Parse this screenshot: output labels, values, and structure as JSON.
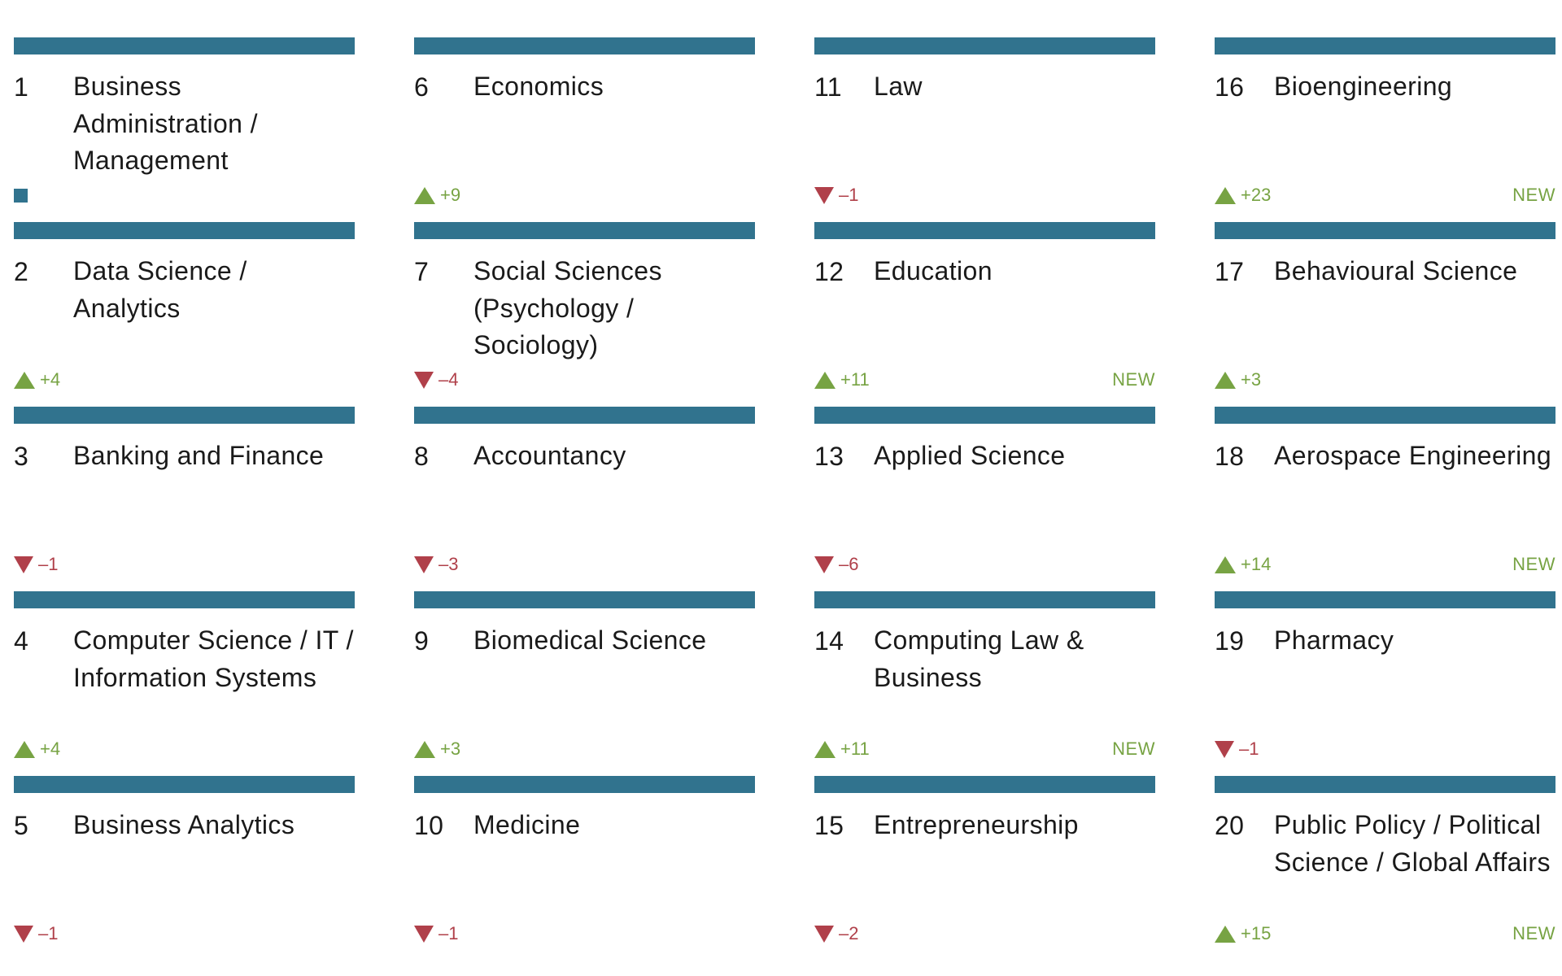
{
  "colors": {
    "bar": "#31738e",
    "up": "#77a343",
    "down": "#b0404a",
    "unchanged": "#31738e"
  },
  "chart_data": {
    "type": "table",
    "columns": [
      "rank",
      "subject",
      "change",
      "new"
    ],
    "rows": [
      {
        "rank": "1",
        "subject": "Business Administration / Management",
        "direction": "same",
        "change": "",
        "new": ""
      },
      {
        "rank": "2",
        "subject": "Data Science / Analytics",
        "direction": "up",
        "change": "+4",
        "new": ""
      },
      {
        "rank": "3",
        "subject": "Banking and Finance",
        "direction": "down",
        "change": "–1",
        "new": ""
      },
      {
        "rank": "4",
        "subject": "Computer Science / IT / Information Systems",
        "direction": "up",
        "change": "+4",
        "new": ""
      },
      {
        "rank": "5",
        "subject": "Business Analytics",
        "direction": "down",
        "change": "–1",
        "new": ""
      },
      {
        "rank": "6",
        "subject": "Economics",
        "direction": "up",
        "change": "+9",
        "new": ""
      },
      {
        "rank": "7",
        "subject": "Social Sciences (Psychology / Sociology)",
        "direction": "down",
        "change": "–4",
        "new": ""
      },
      {
        "rank": "8",
        "subject": "Accountancy",
        "direction": "down",
        "change": "–3",
        "new": ""
      },
      {
        "rank": "9",
        "subject": "Biomedical Science",
        "direction": "up",
        "change": "+3",
        "new": ""
      },
      {
        "rank": "10",
        "subject": "Medicine",
        "direction": "down",
        "change": "–1",
        "new": ""
      },
      {
        "rank": "11",
        "subject": "Law",
        "direction": "down",
        "change": "–1",
        "new": ""
      },
      {
        "rank": "12",
        "subject": "Education",
        "direction": "up",
        "change": "+11",
        "new": "NEW"
      },
      {
        "rank": "13",
        "subject": "Applied Science",
        "direction": "down",
        "change": "–6",
        "new": ""
      },
      {
        "rank": "14",
        "subject": "Computing Law & Business",
        "direction": "up",
        "change": "+11",
        "new": "NEW"
      },
      {
        "rank": "15",
        "subject": "Entrepreneurship",
        "direction": "down",
        "change": "–2",
        "new": ""
      },
      {
        "rank": "16",
        "subject": "Bioengineering",
        "direction": "up",
        "change": "+23",
        "new": "NEW"
      },
      {
        "rank": "17",
        "subject": "Behavioural Science",
        "direction": "up",
        "change": "+3",
        "new": ""
      },
      {
        "rank": "18",
        "subject": "Aerospace Engineering",
        "direction": "up",
        "change": "+14",
        "new": "NEW"
      },
      {
        "rank": "19",
        "subject": "Pharmacy",
        "direction": "down",
        "change": "–1",
        "new": ""
      },
      {
        "rank": "20",
        "subject": "Public Policy / Political Science / Global Affairs",
        "direction": "up",
        "change": "+15",
        "new": "NEW"
      }
    ]
  }
}
